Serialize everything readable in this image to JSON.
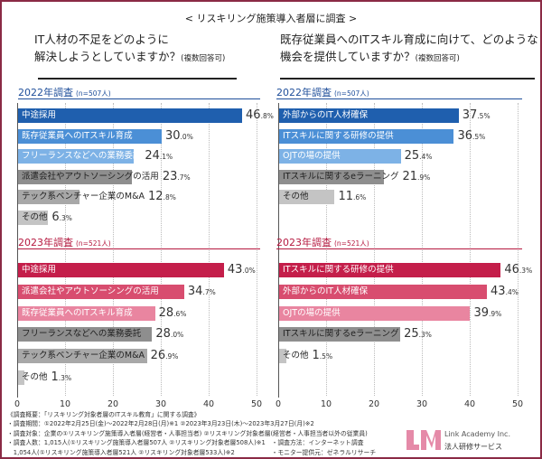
{
  "header": {
    "title": "< リスキリング施策導入者層に調査 >"
  },
  "colors": {
    "c2022": [
      "#1f5fae",
      "#4b8fd6",
      "#7db2e6",
      "#8e8e8e",
      "#a8a8a8",
      "#c4c4c4"
    ],
    "c2023": [
      "#c41e4a",
      "#d84d6f",
      "#e985a0",
      "#8e8e8e",
      "#a8a8a8",
      "#c4c4c4"
    ],
    "frame": "#8a2a45"
  },
  "chart_data": [
    {
      "type": "bar",
      "orientation": "horizontal",
      "question_line1": "IT人材の不足をどのように",
      "question_line2": "解決しようとしていますか？",
      "question_note": "(複数回答可)",
      "xlim": [
        0,
        50
      ],
      "ticks": [
        "0",
        "10",
        "20",
        "30",
        "40",
        "50"
      ],
      "panels": [
        {
          "year_label": "2022年調査",
          "n_label": "(n=507人)",
          "categories": [
            "中途採用",
            "既存従業員へのITスキル育成",
            "フリーランスなどへの業務委託",
            "派遣会社やアウトソーシングの活用",
            "テック系ベンチャー企業のM&A",
            "その他"
          ],
          "values": [
            46.8,
            30.0,
            24.1,
            23.7,
            12.8,
            6.3
          ]
        },
        {
          "year_label": "2023年調査",
          "n_label": "(n=521人)",
          "categories": [
            "中途採用",
            "派遣会社やアウトソーシングの活用",
            "既存従業員へのITスキル育成",
            "フリーランスなどへの業務委託",
            "テック系ベンチャー企業のM&A",
            "その他"
          ],
          "values": [
            43.0,
            34.7,
            28.6,
            28.0,
            26.9,
            1.3
          ]
        }
      ]
    },
    {
      "type": "bar",
      "orientation": "horizontal",
      "question_line1": "既存従業員へのITスキル育成に向けて、どのような",
      "question_line2": "機会を提供していますか？",
      "question_note": "(複数回答可)",
      "xlim": [
        0,
        50
      ],
      "ticks": [
        "0",
        "10",
        "20",
        "30",
        "40",
        "50"
      ],
      "panels": [
        {
          "year_label": "2022年調査",
          "n_label": "(n=507人)",
          "categories": [
            "外部からのIT人材確保",
            "ITスキルに関する研修の提供",
            "OJTの場の提供",
            "ITスキルに関するeラーニング",
            "その他"
          ],
          "values": [
            37.5,
            36.5,
            25.4,
            21.9,
            11.6
          ]
        },
        {
          "year_label": "2023年調査",
          "n_label": "(n=521人)",
          "categories": [
            "ITスキルに関する研修の提供",
            "外部からのIT人材確保",
            "OJTの場の提供",
            "ITスキルに関するeラーニング",
            "その他"
          ],
          "values": [
            46.3,
            43.4,
            39.9,
            25.3,
            1.5
          ]
        }
      ]
    }
  ],
  "footer": {
    "notes": [
      "《調査概要：「リスキリング対象者層のITスキル教育」に関する調査》",
      "・調査期間：①2022年2月25日(金)～2022年2月28日(月)※1 ②2023年3月23日(木)～2023年3月27日(月)※2",
      "・調査対象：企業の①リスキリング施策導入者層(経営者・人事担当者) ②リスキリング対象者層(経営者・人事担当者以外の従業員)",
      "・調査人数：1,015人(①リスキリング施策導入者層507人 ②リスキリング対象者層508人)※1　・調査方法：インターネット調査",
      "　1,054人(①リスキリング施策導入者層521人 ②リスキリング対象者層533人)※2　　　　　　・モニター提供元：ゼネラルリサーチ"
    ],
    "logo_text": "Link Academy Inc.",
    "logo_sub": "法人研修サービス"
  }
}
